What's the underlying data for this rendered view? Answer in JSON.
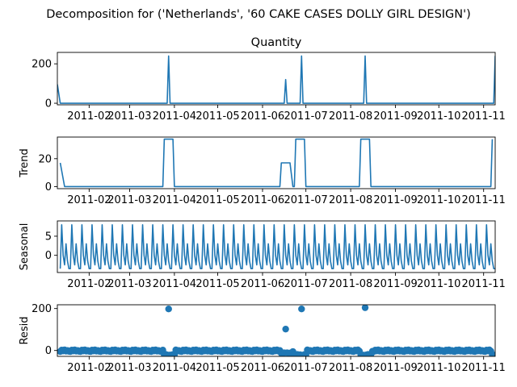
{
  "figure_title": "Decomposition for ('Netherlands', '60 CAKE CASES DOLLY GIRL DESIGN')",
  "colors": {
    "line": "#1f77b4",
    "axis": "#000000"
  },
  "chart_data": [
    {
      "type": "line",
      "title": "Quantity",
      "ylabel": "",
      "xlim": [
        "2011-01-10",
        "2011-11-09"
      ],
      "ylim": [
        -8,
        258
      ],
      "yticks": [
        0,
        200
      ],
      "xtick_labels": [
        "2011-02",
        "2011-03",
        "2011-04",
        "2011-05",
        "2011-06",
        "2011-07",
        "2011-08",
        "2011-09",
        "2011-10",
        "2011-11"
      ],
      "series": [
        {
          "x": [
            "2011-01-10",
            "2011-01-12",
            "2011-03-27",
            "2011-03-28",
            "2011-03-29",
            "2011-06-16",
            "2011-06-17",
            "2011-06-18",
            "2011-06-27",
            "2011-06-28",
            "2011-06-29",
            "2011-08-10",
            "2011-08-11",
            "2011-08-12",
            "2011-11-08",
            "2011-11-09"
          ],
          "values": [
            96,
            0,
            0,
            240,
            0,
            0,
            120,
            0,
            0,
            240,
            0,
            0,
            240,
            0,
            0,
            240
          ]
        }
      ]
    },
    {
      "type": "line",
      "title": "",
      "ylabel": "Trend",
      "xlim": [
        "2011-01-10",
        "2011-11-09"
      ],
      "ylim": [
        -1.5,
        35.5
      ],
      "yticks": [
        0,
        20
      ],
      "xtick_labels": [
        "2011-02",
        "2011-03",
        "2011-04",
        "2011-05",
        "2011-06",
        "2011-07",
        "2011-08",
        "2011-09",
        "2011-10",
        "2011-11"
      ],
      "series": [
        {
          "x": [
            "2011-01-12",
            "2011-01-15",
            "2011-03-24",
            "2011-03-25",
            "2011-03-31",
            "2011-04-01",
            "2011-06-13",
            "2011-06-14",
            "2011-06-20",
            "2011-06-22",
            "2011-06-23",
            "2011-06-24",
            "2011-06-30",
            "2011-07-01",
            "2011-08-07",
            "2011-08-08",
            "2011-08-14",
            "2011-08-15",
            "2011-11-06",
            "2011-11-07"
          ],
          "values": [
            17,
            0,
            0,
            34,
            34,
            0,
            0,
            17,
            17,
            0,
            0,
            34,
            34,
            0,
            0,
            34,
            34,
            0,
            0,
            34
          ]
        }
      ]
    },
    {
      "type": "line",
      "title": "",
      "ylabel": "Seasonal",
      "xlim": [
        "2011-01-10",
        "2011-11-09"
      ],
      "ylim": [
        -4.5,
        9
      ],
      "yticks": [
        0,
        5
      ],
      "xtick_labels": [
        "2011-02",
        "2011-03",
        "2011-04",
        "2011-05",
        "2011-06",
        "2011-07",
        "2011-08",
        "2011-09",
        "2011-10",
        "2011-11"
      ],
      "x_start": "2011-01-12",
      "x_end": "2011-11-09",
      "pattern_7day": [
        -3.5,
        8,
        0,
        -2.5,
        3,
        -1.5,
        -3.5
      ]
    },
    {
      "type": "scatter",
      "title": "",
      "ylabel": "Resid",
      "xlim": [
        "2011-01-10",
        "2011-11-09"
      ],
      "ylim": [
        -28,
        218
      ],
      "yticks": [
        0,
        200
      ],
      "xtick_labels": [
        "2011-02",
        "2011-03",
        "2011-04",
        "2011-05",
        "2011-06",
        "2011-07",
        "2011-08",
        "2011-09",
        "2011-10",
        "2011-11"
      ],
      "x_start": "2011-01-12",
      "x_end": "2011-11-09",
      "base_pattern_7day": [
        -5,
        2,
        -2,
        3,
        -3,
        0,
        -4
      ],
      "dip_ranges": [
        {
          "from": "2011-03-25",
          "to": "2011-04-01",
          "value": -20
        },
        {
          "from": "2011-06-14",
          "to": "2011-06-21",
          "value": -12
        },
        {
          "from": "2011-06-23",
          "to": "2011-07-01",
          "value": -20
        },
        {
          "from": "2011-08-08",
          "to": "2011-08-15",
          "value": -20
        },
        {
          "from": "2011-11-07",
          "to": "2011-11-09",
          "value": -20
        }
      ],
      "spikes": [
        {
          "x": "2011-03-28",
          "value": 198
        },
        {
          "x": "2011-06-17",
          "value": 102
        },
        {
          "x": "2011-06-28",
          "value": 198
        },
        {
          "x": "2011-08-11",
          "value": 204
        }
      ]
    }
  ]
}
